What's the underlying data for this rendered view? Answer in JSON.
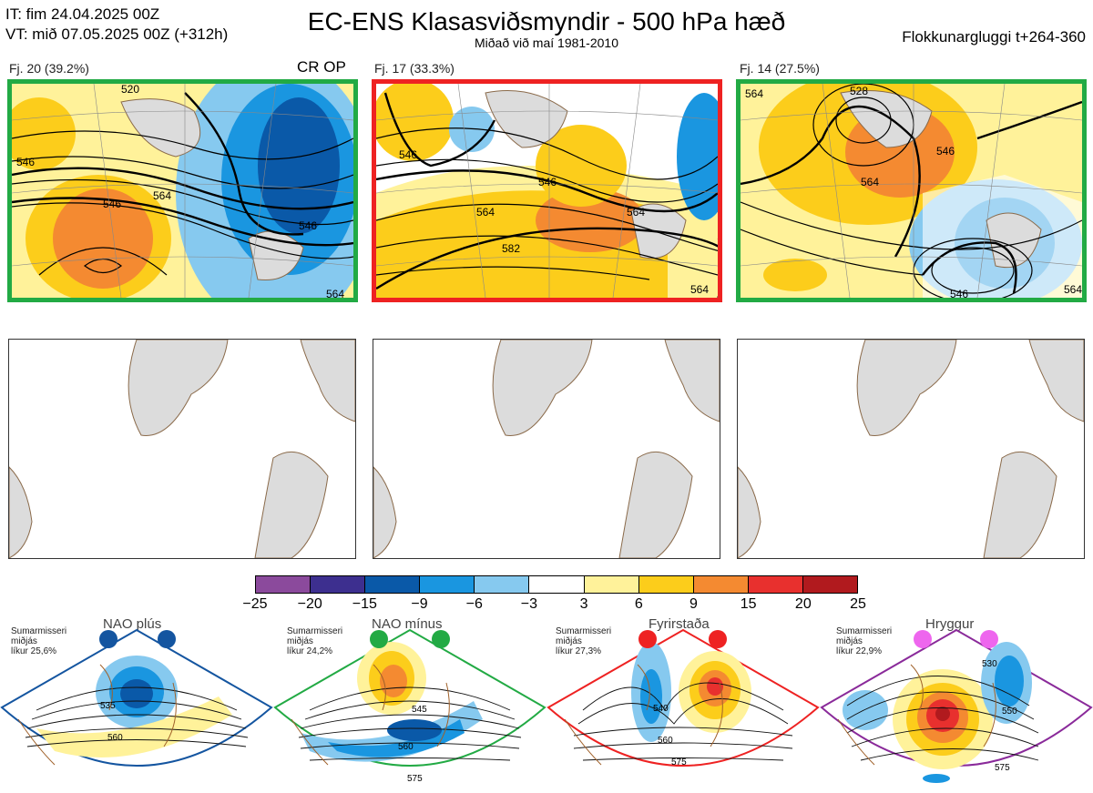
{
  "header": {
    "it": "IT: fim 24.04.2025 00Z",
    "vt": "VT: mið 07.05.2025 00Z  (+312h)",
    "title": "EC-ENS Klasasviðsmyndir - 500 hPa hæð",
    "subtitle": "Miðað við maí 1981-2010",
    "window": "Flokkunargluggi t+264-360"
  },
  "clusters": [
    {
      "label": "Fj. 20 (39.2%)",
      "border": "#22aa44",
      "tag": "CR OP",
      "contours": [
        "520",
        "546",
        "564",
        "546",
        "546",
        "564"
      ]
    },
    {
      "label": "Fj. 17 (33.3%)",
      "border": "#ee2222",
      "tag": "",
      "contours": [
        "546",
        "546",
        "564",
        "582",
        "564",
        "564"
      ]
    },
    {
      "label": "Fj. 14 (27.5%)",
      "border": "#22aa44",
      "tag": "",
      "contours": [
        "564",
        "528",
        "546",
        "564",
        "546",
        "564"
      ]
    }
  ],
  "colorbar": {
    "colors": [
      "#8b4a9c",
      "#3d2f8f",
      "#0a59a8",
      "#1a96e0",
      "#86c9ef",
      "#ffffff",
      "#fff29a",
      "#fccd1b",
      "#f48a31",
      "#e8302e",
      "#b11a1e"
    ],
    "ticks": [
      "−25",
      "−20",
      "−15",
      "−9",
      "−6",
      "−3",
      "3",
      "6",
      "9",
      "15",
      "20",
      "25"
    ]
  },
  "regimes": [
    {
      "name": "NAO plús",
      "season": "Sumarmisseri",
      "line2": "miðjás",
      "prob": "líkur 25,6%",
      "color": "#1455a0",
      "contours": [
        "535",
        "560"
      ]
    },
    {
      "name": "NAO mínus",
      "season": "Sumarmisseri",
      "line2": "miðjás",
      "prob": "líkur 24,2%",
      "color": "#22aa44",
      "contours": [
        "545",
        "560",
        "575"
      ]
    },
    {
      "name": "Fyrirstaða",
      "season": "Sumarmisseri",
      "line2": "miðjás",
      "prob": "líkur 27,3%",
      "color": "#ee2222",
      "contours": [
        "540",
        "560",
        "575"
      ]
    },
    {
      "name": "Hryggur",
      "season": "Sumarmisseri",
      "line2": "miðjás",
      "prob": "líkur 22,9%",
      "color": "#ee66ee",
      "border": "#8a2a9a",
      "contours": [
        "530",
        "550",
        "575"
      ]
    }
  ]
}
